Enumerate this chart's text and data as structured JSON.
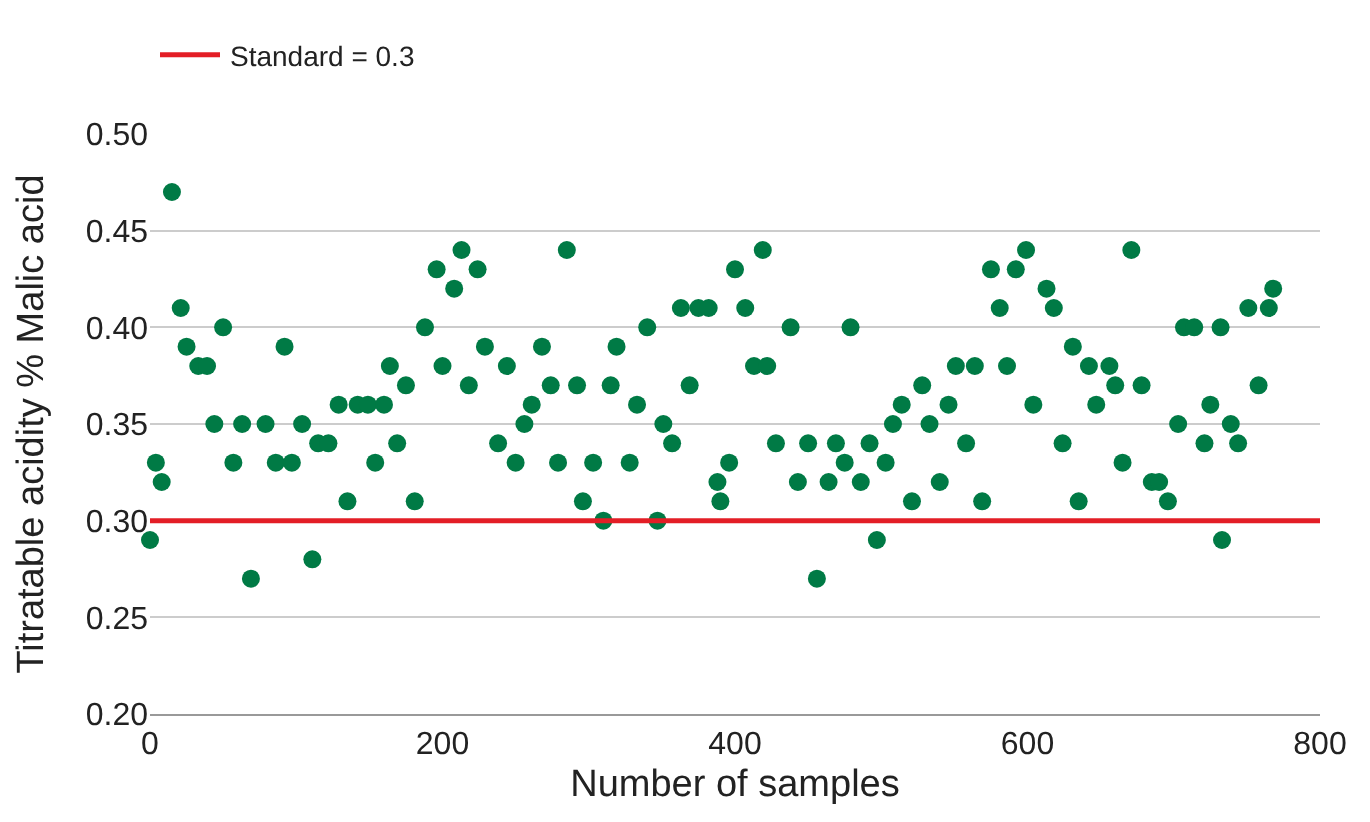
{
  "chart_data": {
    "type": "scatter",
    "xlabel": "Number of samples",
    "ylabel": "Titratable acidity % Malic acid",
    "x": [
      0,
      4,
      8,
      15,
      21,
      25,
      33,
      39,
      44,
      50,
      57,
      63,
      69,
      79,
      86,
      92,
      97,
      104,
      111,
      115,
      122,
      129,
      135,
      142,
      149,
      154,
      160,
      164,
      169,
      175,
      181,
      188,
      196,
      200,
      208,
      213,
      218,
      224,
      229,
      238,
      244,
      250,
      256,
      261,
      268,
      274,
      279,
      285,
      292,
      296,
      303,
      310,
      315,
      319,
      328,
      333,
      340,
      347,
      351,
      357,
      363,
      369,
      375,
      382,
      388,
      390,
      396,
      400,
      407,
      413,
      419,
      422,
      428,
      438,
      443,
      450,
      456,
      464,
      469,
      475,
      479,
      486,
      492,
      497,
      503,
      508,
      514,
      521,
      528,
      533,
      540,
      546,
      551,
      558,
      564,
      569,
      575,
      581,
      586,
      592,
      599,
      604,
      613,
      618,
      624,
      631,
      635,
      642,
      647,
      656,
      660,
      665,
      671,
      678,
      685,
      690,
      696,
      703,
      707,
      714,
      721,
      725,
      732,
      733,
      739,
      744,
      751,
      758,
      765,
      768
    ],
    "series": [
      {
        "color": "#007a45",
        "values": [
          0.29,
          0.33,
          0.32,
          0.47,
          0.41,
          0.39,
          0.38,
          0.38,
          0.35,
          0.4,
          0.33,
          0.35,
          0.27,
          0.35,
          0.33,
          0.39,
          0.33,
          0.35,
          0.28,
          0.34,
          0.34,
          0.36,
          0.31,
          0.36,
          0.36,
          0.33,
          0.36,
          0.38,
          0.34,
          0.37,
          0.31,
          0.4,
          0.43,
          0.38,
          0.42,
          0.44,
          0.37,
          0.43,
          0.39,
          0.34,
          0.38,
          0.33,
          0.35,
          0.36,
          0.39,
          0.37,
          0.33,
          0.44,
          0.37,
          0.31,
          0.33,
          0.3,
          0.37,
          0.39,
          0.33,
          0.36,
          0.4,
          0.3,
          0.35,
          0.34,
          0.41,
          0.37,
          0.41,
          0.41,
          0.32,
          0.31,
          0.33,
          0.43,
          0.41,
          0.38,
          0.44,
          0.38,
          0.34,
          0.4,
          0.32,
          0.34,
          0.27,
          0.32,
          0.34,
          0.33,
          0.4,
          0.32,
          0.34,
          0.29,
          0.33,
          0.35,
          0.36,
          0.31,
          0.37,
          0.35,
          0.32,
          0.36,
          0.38,
          0.34,
          0.38,
          0.31,
          0.43,
          0.41,
          0.38,
          0.43,
          0.44,
          0.36,
          0.42,
          0.41,
          0.34,
          0.39,
          0.31,
          0.38,
          0.36,
          0.38,
          0.37,
          0.33,
          0.44,
          0.37,
          0.32,
          0.32,
          0.31,
          0.35,
          0.4,
          0.4,
          0.34,
          0.36,
          0.4,
          0.29,
          0.35,
          0.34,
          0.41,
          0.37,
          0.41,
          0.42
        ]
      }
    ],
    "xlim": [
      0,
      800
    ],
    "xticks": [
      0,
      200,
      400,
      600,
      800
    ],
    "ylim": [
      0.2,
      0.5
    ],
    "yticks": [
      {
        "value": 0.2,
        "label": "0.20"
      },
      {
        "value": 0.25,
        "label": "0.25"
      },
      {
        "value": 0.3,
        "label": "0.30"
      },
      {
        "value": 0.35,
        "label": "0.35"
      },
      {
        "value": 0.4,
        "label": "0.40"
      },
      {
        "value": 0.45,
        "label": "0.45"
      },
      {
        "value": 0.5,
        "label": "0.50"
      }
    ],
    "ref_lines": [
      {
        "axis": "y",
        "value": 0.3,
        "label": "Standard = 0.3",
        "color": "#e31e26"
      }
    ],
    "grid": "y",
    "legend": "top left",
    "marker": "circle"
  }
}
